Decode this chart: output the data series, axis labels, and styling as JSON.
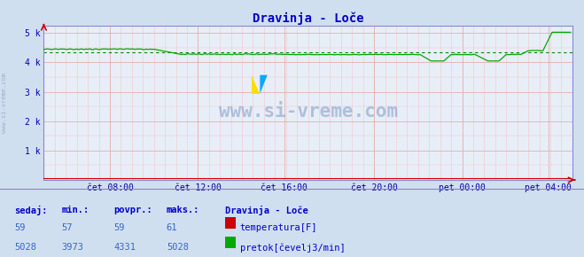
{
  "title": "Dravinja - Loče",
  "bg_color": "#d0dff0",
  "plot_bg_color": "#e8eef8",
  "title_color": "#0000cc",
  "tick_label_color": "#0000aa",
  "temp_color": "#cc0000",
  "flow_color": "#00aa00",
  "avg_line_color": "#008800",
  "x_tick_labels": [
    "čet 08:00",
    "čet 12:00",
    "čet 16:00",
    "čet 20:00",
    "pet 00:00",
    "pet 04:00"
  ],
  "x_tick_fractions": [
    0.125,
    0.292,
    0.458,
    0.625,
    0.792,
    0.958
  ],
  "y_tick_labels": [
    "1 k",
    "2 k",
    "3 k",
    "4 k",
    "5 k"
  ],
  "y_tick_values": [
    1000,
    2000,
    3000,
    4000,
    5000
  ],
  "ylim": [
    0,
    5250
  ],
  "n_points": 288,
  "temp_sedaj": 59,
  "temp_min": 57,
  "temp_avg": 59,
  "temp_max": 61,
  "flow_sedaj": 5028,
  "flow_min": 3973,
  "flow_avg": 4331,
  "flow_max": 5028,
  "label_sedaj": "sedaj:",
  "label_min": "min.:",
  "label_povpr": "povpr.:",
  "label_maks": "maks.:",
  "legend_title": "Dravinja - Loče",
  "legend_temp": "temperatura[F]",
  "legend_flow": "pretok[čevelj3/min]",
  "watermark": "www.si-vreme.com",
  "left_label": "www.si-vreme.com",
  "grid_minor_color": "#f0c8c8",
  "grid_major_color": "#e0b0b0",
  "axis_arrow_color": "#cc0000"
}
